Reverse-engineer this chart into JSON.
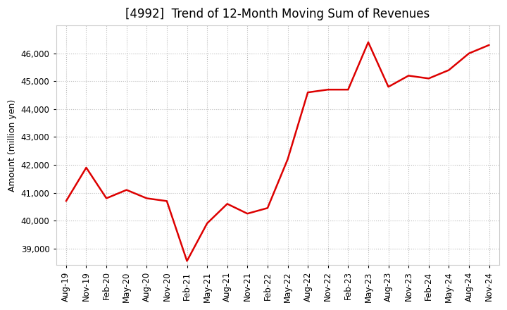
{
  "title": "[4992]  Trend of 12-Month Moving Sum of Revenues",
  "ylabel": "Amount (million yen)",
  "line_color": "#dd0000",
  "background_color": "#ffffff",
  "plot_bg_color": "#ffffff",
  "grid_color": "#bbbbbb",
  "x_labels": [
    "Aug-19",
    "Nov-19",
    "Feb-20",
    "May-20",
    "Aug-20",
    "Nov-20",
    "Feb-21",
    "May-21",
    "Aug-21",
    "Nov-21",
    "Feb-22",
    "May-22",
    "Aug-22",
    "Nov-22",
    "Feb-23",
    "May-23",
    "Aug-23",
    "Nov-23",
    "Feb-24",
    "May-24",
    "Aug-24",
    "Nov-24"
  ],
  "y_values": [
    40700,
    41900,
    40800,
    41100,
    40800,
    40700,
    38550,
    39900,
    40600,
    40250,
    40450,
    42200,
    44600,
    44700,
    44700,
    46400,
    44800,
    45200,
    45100,
    45400,
    46000,
    46300
  ],
  "ylim": [
    38400,
    47000
  ],
  "yticks": [
    39000,
    40000,
    41000,
    42000,
    43000,
    44000,
    45000,
    46000
  ],
  "title_fontsize": 12,
  "label_fontsize": 9,
  "tick_fontsize": 8.5
}
